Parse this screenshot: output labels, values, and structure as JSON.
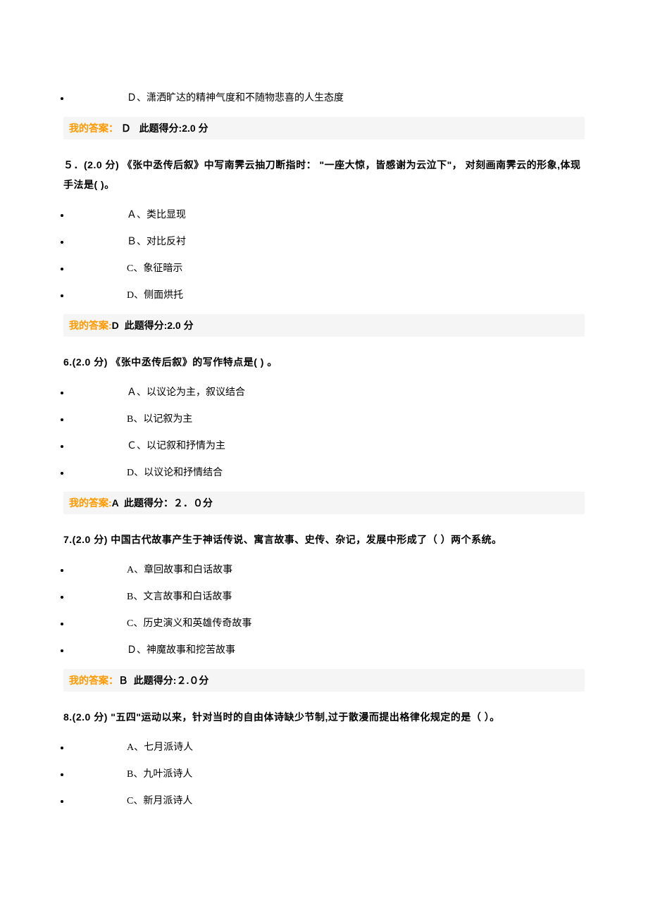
{
  "page_bg": "#ffffff",
  "answer_label_color": "#ff9900",
  "answer_bar_bg": "#f5f5f5",
  "text_color": "#000000",
  "font_family_main": "Microsoft YaHei",
  "font_family_option": "SimSun",
  "answer_label": "我的答案：",
  "answer_label_nocolon": "我的答案:",
  "q4_optD": "Ｄ、潇洒旷达的精神气度和不随物悲喜的人生态度",
  "q4_answer": "Ｄ",
  "q4_score": "此题得分:2.0 分",
  "q5_text": "５．(2.0 分)  《张中丞传后叙》中写南霁云抽刀断指时：  \"一座大惊，皆感谢为云泣下\"，  对刻画南霁云的形象,体现手法是(  )。",
  "q5_optA": "Ａ、类比显现",
  "q5_optB": "Ｂ、对比反衬",
  "q5_optC": "C、象征暗示",
  "q5_optD": "D、侧面烘托",
  "q5_answer": "D",
  "q5_score": "此题得分:2.0 分",
  "q6_text": "6.(2.0 分)  《张中丞传后叙》的写作特点是(   ) 。",
  "q6_optA": "Ａ、以议论为主，叙议结合",
  "q6_optB": "B、以记叙为主",
  "q6_optC": "Ｃ、以记叙和抒情为主",
  "q6_optD": "D、以议论和抒情结合",
  "q6_answer": "A",
  "q6_score": "此题得分：２．０分",
  "q7_text": "7.(2.0 分)  中国古代故事产生于神话传说、寓言故事、史传、杂记，发展中形成了（ ）两个系统。",
  "q7_optA": "A、章回故事和白话故事",
  "q7_optB": "B、文言故事和白话故事",
  "q7_optC": "C、历史演义和英雄传奇故事",
  "q7_optD": "Ｄ、神魔故事和挖苦故事",
  "q7_answer": "Ｂ",
  "q7_score": "此题得分:２.０分",
  "q8_text": "8.(2.0 分)   \"五四\"运动以来，针对当时的自由体诗缺少节制,过于散漫而提出格律化规定的是（ ）。",
  "q8_optA": "A、七月派诗人",
  "q8_optB": "B、九叶派诗人",
  "q8_optC": "C、新月派诗人"
}
